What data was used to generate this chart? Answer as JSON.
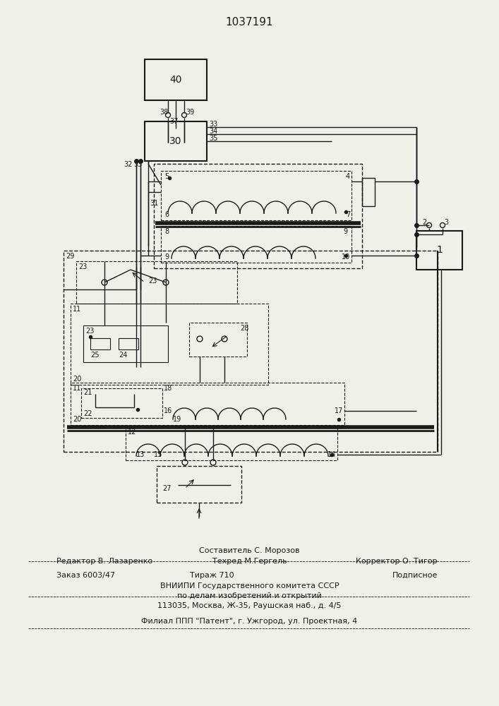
{
  "title": "1037191",
  "bg_color": "#f0f0eb",
  "line_color": "#1a1a1a",
  "footer": {
    "line1": "Составитель С. Морозов",
    "line2_left": "Редактор В. Лазаренко",
    "line2_mid": "Техред М.Гергель",
    "line2_right": "Корректор О. Тигор",
    "line3_left": "Заказ 6003/47",
    "line3_mid": "Тираж 710",
    "line3_right": "Подписное",
    "line4": "ВНИИПИ Государственного комитета СССР",
    "line5": "по делам изобретений и открытий",
    "line6": "113035, Москва, Ж-35, Раушская наб., д. 4/5",
    "line7": "Филиал ППП \"Патент\", г. Ужгород, ул. Проектная, 4"
  }
}
